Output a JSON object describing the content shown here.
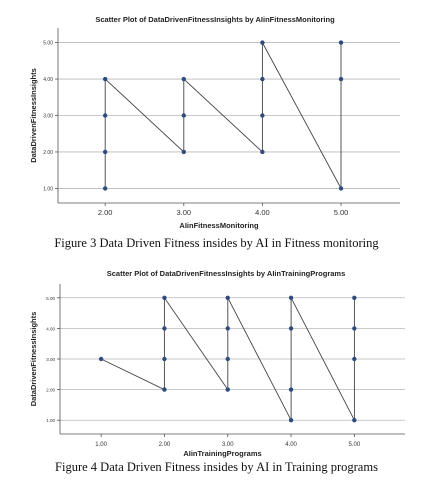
{
  "chart_data": [
    {
      "type": "scatter",
      "title": "Scatter Plot of DataDrivenFitnessInsights by AIinFitnessMonitoring",
      "xlabel": "AIinFitnessMonitoring",
      "ylabel": "DataDrivenFitnessInsights",
      "xlim": [
        1.4,
        5.75
      ],
      "ylim": [
        0.6,
        5.4
      ],
      "xticks": [
        "2.00",
        "3.00",
        "4.00",
        "5.00"
      ],
      "yticks": [
        "1.00",
        "2.00",
        "3.00",
        "4.00",
        "5.00"
      ],
      "grid": "horizontal",
      "points": [
        {
          "x": 2,
          "y": 1
        },
        {
          "x": 2,
          "y": 2
        },
        {
          "x": 2,
          "y": 3
        },
        {
          "x": 2,
          "y": 4
        },
        {
          "x": 3,
          "y": 2
        },
        {
          "x": 3,
          "y": 3
        },
        {
          "x": 3,
          "y": 4
        },
        {
          "x": 4,
          "y": 2
        },
        {
          "x": 4,
          "y": 3
        },
        {
          "x": 4,
          "y": 4
        },
        {
          "x": 4,
          "y": 5
        },
        {
          "x": 5,
          "y": 1
        },
        {
          "x": 5,
          "y": 4
        },
        {
          "x": 5,
          "y": 5
        }
      ],
      "line": [
        {
          "x": 2,
          "y": 1
        },
        {
          "x": 2,
          "y": 4
        },
        {
          "x": 3,
          "y": 2
        },
        {
          "x": 3,
          "y": 4
        },
        {
          "x": 4,
          "y": 2
        },
        {
          "x": 4,
          "y": 5
        },
        {
          "x": 5,
          "y": 1
        },
        {
          "x": 5,
          "y": 5
        }
      ],
      "marker_color": "#2f4b7c",
      "line_color": "#444444"
    },
    {
      "type": "scatter",
      "title": "Scatter Plot of DataDrivenFitnessInsights by AIinTrainingPrograms",
      "xlabel": "AIinTrainingPrograms",
      "ylabel": "DataDrivenFitnessInsights",
      "xlim": [
        0.35,
        5.8
      ],
      "ylim": [
        0.55,
        5.45
      ],
      "xticks": [
        "1.00",
        "2.00",
        "3.00",
        "4.00",
        "5.00"
      ],
      "yticks": [
        "1.00",
        "2.00",
        "3.00",
        "4.00",
        "5.00"
      ],
      "grid": "horizontal",
      "points": [
        {
          "x": 1,
          "y": 3
        },
        {
          "x": 2,
          "y": 2
        },
        {
          "x": 2,
          "y": 3
        },
        {
          "x": 2,
          "y": 4
        },
        {
          "x": 2,
          "y": 5
        },
        {
          "x": 3,
          "y": 2
        },
        {
          "x": 3,
          "y": 3
        },
        {
          "x": 3,
          "y": 4
        },
        {
          "x": 3,
          "y": 5
        },
        {
          "x": 4,
          "y": 1
        },
        {
          "x": 4,
          "y": 2
        },
        {
          "x": 4,
          "y": 4
        },
        {
          "x": 4,
          "y": 5
        },
        {
          "x": 5,
          "y": 1
        },
        {
          "x": 5,
          "y": 3
        },
        {
          "x": 5,
          "y": 4
        },
        {
          "x": 5,
          "y": 5
        }
      ],
      "line": [
        {
          "x": 1,
          "y": 3
        },
        {
          "x": 2,
          "y": 2
        },
        {
          "x": 2,
          "y": 5
        },
        {
          "x": 3,
          "y": 2
        },
        {
          "x": 3,
          "y": 5
        },
        {
          "x": 4,
          "y": 1
        },
        {
          "x": 4,
          "y": 5
        },
        {
          "x": 5,
          "y": 1
        },
        {
          "x": 5,
          "y": 5
        }
      ],
      "marker_color": "#2f4b7c",
      "line_color": "#444444"
    }
  ],
  "captions": {
    "fig3": "Figure 3 Data Driven Fitness insides by AI in Fitness monitoring",
    "fig4": "Figure 4 Data Driven Fitness insides by AI in Training programs"
  }
}
